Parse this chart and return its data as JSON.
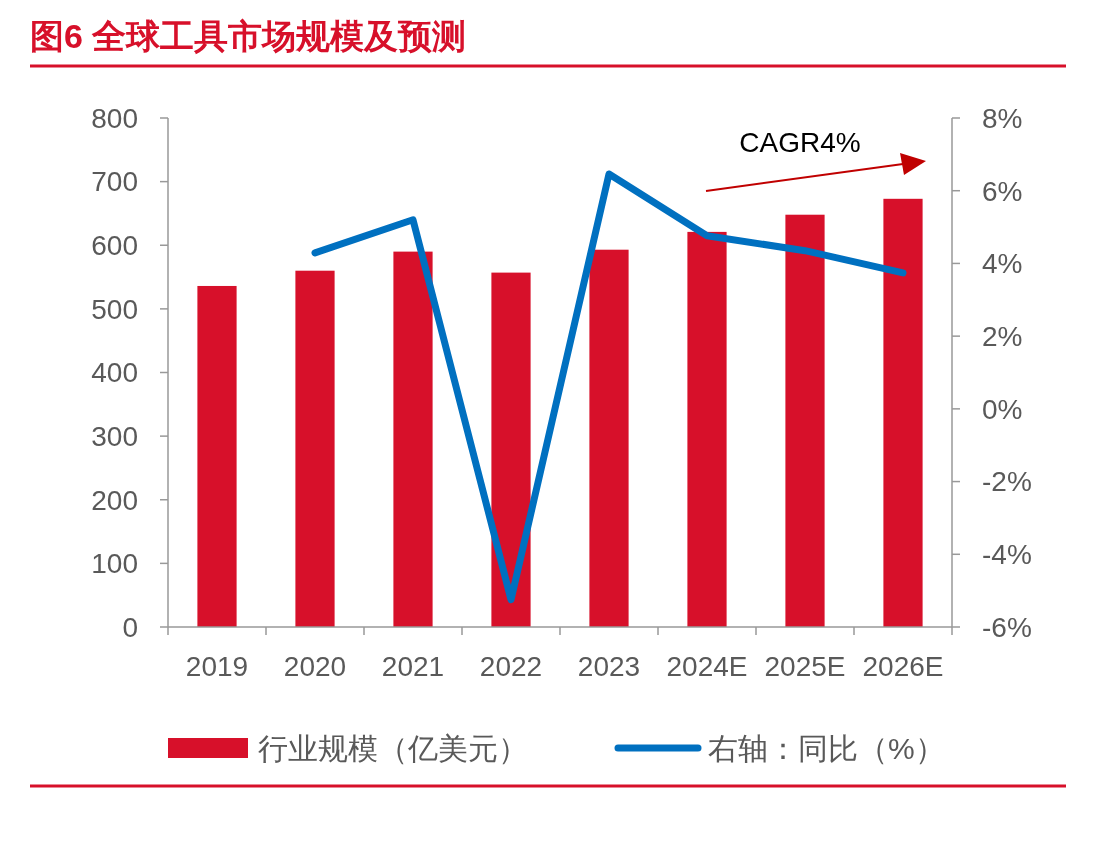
{
  "chart_data": {
    "type": "bar",
    "title": "图6  全球工具市场规模及预测",
    "categories": [
      "2019",
      "2020",
      "2021",
      "2022",
      "2023",
      "2024E",
      "2025E",
      "2026E"
    ],
    "series": [
      {
        "name": "行业规模（亿美元）",
        "color": "#d7102a",
        "values": [
          536,
          560,
          590,
          557,
          593,
          621,
          648,
          673
        ]
      },
      {
        "name": "右轴：同比（%）",
        "type": "line",
        "axis": "y2",
        "color": "#0070c0",
        "values": [
          null,
          4.29,
          5.2,
          -5.25,
          6.46,
          4.76,
          4.35,
          3.74
        ]
      }
    ],
    "ylim": [
      0,
      800
    ],
    "yticks": [
      0,
      100,
      200,
      300,
      400,
      500,
      600,
      700,
      800
    ],
    "y2lim": [
      -6,
      8
    ],
    "y2ticks": [
      {
        "value": -6,
        "label": "-6%"
      },
      {
        "value": -4,
        "label": "-4%"
      },
      {
        "value": -2,
        "label": "-2%"
      },
      {
        "value": 0,
        "label": "0%"
      },
      {
        "value": 2,
        "label": "2%"
      },
      {
        "value": 4,
        "label": "4%"
      },
      {
        "value": 6,
        "label": "6%"
      },
      {
        "value": 8,
        "label": "8%"
      }
    ],
    "annotations": [
      "CAGR4%"
    ],
    "grid": false,
    "legend": "bottom",
    "marker": "none",
    "line_style": "solid"
  }
}
